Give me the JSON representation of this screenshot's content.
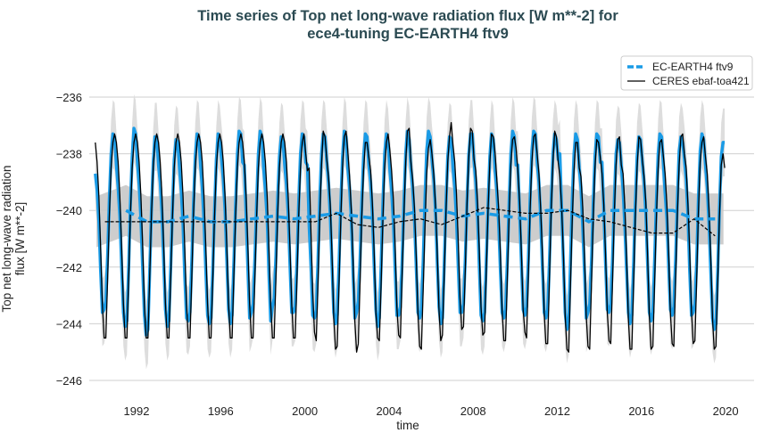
{
  "chart_data": {
    "type": "line",
    "title": [
      "Time series of Top net long-wave radiation flux [W m**-2] for",
      "ece4-tuning EC-EARTH4 ftv9"
    ],
    "xlabel": "time",
    "ylabel": [
      "Top net long-wave radiation",
      "flux [W m**-2]"
    ],
    "xlim": [
      1990,
      2020.5
    ],
    "ylim": [
      -246.5,
      -234.9
    ],
    "x_ticks": [
      "1992",
      "1996",
      "2000",
      "2004",
      "2008",
      "2012",
      "2016",
      "2020"
    ],
    "y_ticks": [
      "−236",
      "−238",
      "−240",
      "−242",
      "−244",
      "−246"
    ],
    "grid": "horizontal",
    "legend_position": "top-right",
    "colors": {
      "model": "#1a9be6",
      "obs": "#000000",
      "spread": "#dddddd",
      "mean_band": "#c8c8c8",
      "title": "#2b4a52"
    },
    "monthly_start_year": 1990,
    "series": [
      {
        "name": "EC-EARTH4 ftv9",
        "style": "dashed-mean-thick-solid-monthly",
        "spread_monthly": 1.2,
        "spread_mean": 0.9,
        "monthly": [
          [
            -238.7,
            -239.3,
            -240.4,
            -242.1,
            -243.6,
            -243.5,
            -243.2,
            -241.6,
            -239.6,
            -238.0,
            -237.3,
            -237.4
          ],
          [
            -238.4,
            -239.2,
            -240.2,
            -242.0,
            -243.6,
            -244.1,
            -243.9,
            -242.0,
            -239.8,
            -238.1,
            -237.1,
            -237.3
          ],
          [
            -238.3,
            -239.1,
            -240.3,
            -242.1,
            -243.7,
            -244.4,
            -244.2,
            -242.2,
            -240.0,
            -238.3,
            -237.4,
            -237.4
          ],
          [
            -238.4,
            -239.0,
            -240.1,
            -241.9,
            -243.5,
            -244.1,
            -243.9,
            -242.0,
            -239.9,
            -238.2,
            -237.5,
            -237.6
          ],
          [
            -238.5,
            -239.3,
            -240.5,
            -242.3,
            -243.8,
            -243.9,
            -243.6,
            -241.8,
            -239.8,
            -238.1,
            -237.3,
            -237.4
          ],
          [
            -238.4,
            -239.2,
            -240.4,
            -242.1,
            -243.7,
            -244.0,
            -243.8,
            -242.0,
            -240.0,
            -238.2,
            -237.3,
            -237.5
          ],
          [
            -238.2,
            -238.9,
            -240.0,
            -241.8,
            -243.5,
            -244.0,
            -243.7,
            -241.9,
            -239.8,
            -238.0,
            -237.2,
            -237.3
          ],
          [
            -238.3,
            -238.4,
            -240.2,
            -242.1,
            -243.8,
            -243.6,
            -243.3,
            -241.7,
            -239.7,
            -238.0,
            -237.2,
            -237.4
          ],
          [
            -238.5,
            -239.3,
            -240.3,
            -242.2,
            -243.9,
            -243.4,
            -243.1,
            -241.6,
            -239.6,
            -238.1,
            -237.4,
            -237.5
          ],
          [
            -238.4,
            -239.1,
            -240.1,
            -241.9,
            -243.6,
            -243.6,
            -243.4,
            -241.8,
            -239.7,
            -238.0,
            -237.3,
            -237.4
          ],
          [
            -238.3,
            -238.4,
            -240.6,
            -242.0,
            -243.7,
            -243.8,
            -243.5,
            -241.8,
            -239.6,
            -238.0,
            -237.3,
            -237.4
          ],
          [
            -238.3,
            -239.0,
            -240.2,
            -242.0,
            -243.6,
            -244.0,
            -243.7,
            -241.9,
            -239.8,
            -238.1,
            -237.2,
            -237.4
          ],
          [
            -238.5,
            -239.2,
            -240.3,
            -242.2,
            -243.8,
            -243.6,
            -243.2,
            -241.7,
            -239.7,
            -238.1,
            -237.3,
            -237.4
          ],
          [
            -238.4,
            -239.0,
            -240.1,
            -241.9,
            -243.5,
            -244.1,
            -243.8,
            -241.9,
            -239.8,
            -238.0,
            -237.3,
            -237.6
          ],
          [
            -238.6,
            -239.3,
            -240.4,
            -242.1,
            -243.7,
            -243.7,
            -243.4,
            -241.8,
            -239.7,
            -238.0,
            -237.2,
            -237.5
          ],
          [
            -238.5,
            -239.2,
            -240.3,
            -242.0,
            -243.6,
            -243.8,
            -243.5,
            -241.8,
            -239.6,
            -237.9,
            -237.2,
            -237.4
          ],
          [
            -238.2,
            -238.9,
            -240.0,
            -241.8,
            -243.4,
            -244.0,
            -243.8,
            -241.9,
            -239.8,
            -238.1,
            -237.4,
            -237.5
          ],
          [
            -238.5,
            -239.2,
            -240.3,
            -242.0,
            -243.6,
            -243.6,
            -243.3,
            -241.7,
            -239.7,
            -238.0,
            -237.3,
            -237.3
          ],
          [
            -238.3,
            -239.0,
            -240.2,
            -242.0,
            -243.7,
            -243.9,
            -243.6,
            -241.8,
            -239.8,
            -238.1,
            -237.3,
            -237.5
          ],
          [
            -238.6,
            -239.3,
            -240.4,
            -242.1,
            -243.6,
            -243.8,
            -243.5,
            -241.8,
            -239.7,
            -238.0,
            -237.2,
            -237.4
          ],
          [
            -238.4,
            -238.4,
            -240.1,
            -241.8,
            -243.5,
            -243.7,
            -243.4,
            -241.7,
            -239.6,
            -237.9,
            -237.2,
            -237.3
          ],
          [
            -238.3,
            -239.0,
            -240.2,
            -242.0,
            -243.6,
            -243.8,
            -243.5,
            -241.8,
            -239.7,
            -238.0,
            -237.3,
            -237.5
          ],
          [
            -238.2,
            -238.0,
            -240.0,
            -241.9,
            -243.6,
            -244.2,
            -243.9,
            -241.9,
            -239.7,
            -238.0,
            -237.3,
            -237.5
          ],
          [
            -238.5,
            -239.2,
            -240.6,
            -242.2,
            -243.8,
            -243.6,
            -243.3,
            -241.8,
            -239.7,
            -238.1,
            -237.3,
            -237.4
          ],
          [
            -238.3,
            -238.3,
            -240.0,
            -241.8,
            -243.5,
            -243.6,
            -243.3,
            -241.7,
            -239.7,
            -238.0,
            -237.5,
            -237.6
          ],
          [
            -238.4,
            -239.3,
            -240.5,
            -242.1,
            -243.6,
            -244.0,
            -243.7,
            -241.9,
            -239.8,
            -238.1,
            -237.4,
            -237.5
          ],
          [
            -238.3,
            -239.0,
            -240.1,
            -241.9,
            -243.6,
            -243.9,
            -243.6,
            -241.8,
            -239.7,
            -238.0,
            -237.3,
            -237.4
          ],
          [
            -238.4,
            -239.4,
            -240.3,
            -242.0,
            -243.5,
            -243.7,
            -243.4,
            -241.7,
            -239.6,
            -237.9,
            -237.4,
            -237.6
          ],
          [
            -238.2,
            -238.9,
            -240.2,
            -242.1,
            -243.7,
            -243.6,
            -243.3,
            -241.8,
            -239.6,
            -237.9,
            -237.3,
            -237.5
          ],
          [
            -238.4,
            -239.2,
            -240.4,
            -242.1,
            -243.8,
            -244.2,
            -244.0,
            -242.1,
            -239.9,
            -238.1,
            -237.6,
            -237.6
          ]
        ],
        "running_mean": {
          "years": [
            1991,
            1992,
            1993,
            1994,
            1995,
            1996,
            1997,
            1998,
            1999,
            2000,
            2001,
            2002,
            2003,
            2004,
            2005,
            2006,
            2007,
            2008,
            2009,
            2010,
            2011,
            2012,
            2013,
            2014,
            2015,
            2016,
            2017,
            2018,
            2019
          ],
          "values": [
            -240.0,
            -240.4,
            -240.4,
            -240.2,
            -240.4,
            -240.4,
            -240.3,
            -240.2,
            -240.3,
            -240.2,
            -240.1,
            -240.2,
            -240.3,
            -240.2,
            -240.0,
            -240.0,
            -240.2,
            -240.1,
            -240.2,
            -240.3,
            -240.0,
            -240.0,
            -240.4,
            -240.0,
            -240.0,
            -240.0,
            -240.0,
            -240.3,
            -240.3
          ]
        }
      },
      {
        "name": "CERES ebaf-toa421",
        "style": "thin-solid-monthly-dashed-mean",
        "monthly": [
          [
            -237.6,
            -238.3,
            -239.5,
            -241.3,
            -243.3,
            -244.5,
            -244.5,
            -242.4,
            -240.2,
            -238.5,
            -237.6,
            -237.3
          ],
          [
            -237.6,
            -238.3,
            -239.5,
            -241.3,
            -243.3,
            -244.5,
            -244.5,
            -242.4,
            -240.2,
            -238.5,
            -237.6,
            -237.3
          ],
          [
            -237.6,
            -238.3,
            -239.5,
            -241.3,
            -243.3,
            -244.5,
            -244.5,
            -242.4,
            -240.2,
            -238.5,
            -237.6,
            -237.3
          ],
          [
            -237.6,
            -238.3,
            -239.5,
            -241.3,
            -243.3,
            -244.5,
            -244.5,
            -242.4,
            -240.2,
            -238.5,
            -237.6,
            -237.3
          ],
          [
            -237.6,
            -238.3,
            -239.5,
            -241.3,
            -243.3,
            -244.5,
            -244.5,
            -242.4,
            -240.2,
            -238.5,
            -237.6,
            -237.3
          ],
          [
            -237.6,
            -238.3,
            -239.5,
            -241.3,
            -243.3,
            -244.5,
            -244.5,
            -242.4,
            -240.2,
            -238.5,
            -237.6,
            -237.3
          ],
          [
            -237.6,
            -238.3,
            -239.5,
            -241.3,
            -243.3,
            -244.5,
            -244.5,
            -242.4,
            -240.2,
            -238.5,
            -237.6,
            -237.3
          ],
          [
            -237.6,
            -238.3,
            -239.5,
            -241.3,
            -243.3,
            -244.5,
            -244.5,
            -242.4,
            -240.2,
            -238.5,
            -237.6,
            -237.3
          ],
          [
            -237.6,
            -238.3,
            -239.5,
            -241.3,
            -243.3,
            -244.5,
            -244.5,
            -242.4,
            -240.2,
            -238.5,
            -237.6,
            -237.3
          ],
          [
            -237.6,
            -238.3,
            -239.5,
            -241.3,
            -243.3,
            -244.5,
            -244.5,
            -242.4,
            -240.2,
            -238.5,
            -237.6,
            -237.3
          ],
          [
            -238.0,
            -238.6,
            -238.5,
            -240.8,
            -242.9,
            -244.3,
            -244.6,
            -242.6,
            -240.3,
            -238.4,
            -237.2,
            -237.4
          ],
          [
            -238.2,
            -238.8,
            -239.8,
            -241.6,
            -243.8,
            -244.9,
            -244.8,
            -242.6,
            -240.3,
            -238.5,
            -237.4,
            -237.2
          ],
          [
            -237.9,
            -238.8,
            -240.0,
            -241.7,
            -243.9,
            -245.0,
            -244.7,
            -242.5,
            -240.2,
            -238.6,
            -237.6,
            -237.6
          ],
          [
            -238.1,
            -238.6,
            -239.7,
            -241.4,
            -243.6,
            -244.5,
            -244.6,
            -242.6,
            -240.4,
            -238.5,
            -237.6,
            -237.3
          ],
          [
            -237.9,
            -238.6,
            -239.6,
            -241.3,
            -243.4,
            -244.4,
            -244.5,
            -242.3,
            -240.2,
            -238.3,
            -237.2,
            -237.1
          ],
          [
            -238.3,
            -238.9,
            -239.9,
            -241.6,
            -243.6,
            -244.8,
            -244.9,
            -242.8,
            -240.6,
            -238.7,
            -237.8,
            -237.5
          ],
          [
            -238.0,
            -238.7,
            -239.8,
            -241.4,
            -243.5,
            -244.6,
            -244.4,
            -242.3,
            -240.1,
            -238.3,
            -237.4,
            -236.9
          ],
          [
            -237.7,
            -238.3,
            -239.4,
            -241.1,
            -243.1,
            -244.2,
            -244.1,
            -242.1,
            -239.8,
            -238.1,
            -237.1,
            -237.2
          ],
          [
            -238.2,
            -238.6,
            -239.7,
            -241.4,
            -243.4,
            -244.4,
            -244.3,
            -242.2,
            -240.0,
            -238.3,
            -237.3,
            -237.4
          ],
          [
            -238.0,
            -238.9,
            -239.9,
            -241.5,
            -243.5,
            -244.6,
            -244.6,
            -242.4,
            -240.2,
            -238.4,
            -237.5,
            -237.4
          ],
          [
            -237.8,
            -238.6,
            -239.7,
            -241.4,
            -243.5,
            -244.3,
            -244.5,
            -242.3,
            -240.0,
            -238.3,
            -237.4,
            -237.3
          ],
          [
            -238.0,
            -238.7,
            -239.9,
            -241.5,
            -243.6,
            -244.7,
            -244.7,
            -242.4,
            -240.1,
            -238.3,
            -237.2,
            -237.4
          ],
          [
            -238.3,
            -238.8,
            -239.9,
            -241.6,
            -243.7,
            -244.9,
            -245.0,
            -242.7,
            -240.4,
            -238.6,
            -237.6,
            -237.6
          ],
          [
            -238.5,
            -238.8,
            -239.9,
            -241.6,
            -243.7,
            -244.8,
            -244.9,
            -242.6,
            -240.3,
            -238.5,
            -237.5,
            -237.6
          ],
          [
            -238.1,
            -238.7,
            -239.8,
            -241.5,
            -243.6,
            -244.6,
            -244.7,
            -242.5,
            -240.2,
            -238.4,
            -237.5,
            -237.4
          ],
          [
            -238.4,
            -238.7,
            -239.8,
            -241.6,
            -243.8,
            -244.9,
            -244.9,
            -242.6,
            -240.3,
            -238.5,
            -237.4,
            -237.5
          ],
          [
            -238.2,
            -238.8,
            -239.7,
            -241.6,
            -243.7,
            -244.9,
            -244.8,
            -242.6,
            -240.3,
            -238.5,
            -237.6,
            -237.5
          ],
          [
            -238.1,
            -238.7,
            -239.8,
            -241.5,
            -243.6,
            -244.7,
            -244.8,
            -242.4,
            -240.1,
            -238.4,
            -237.4,
            -237.3
          ],
          [
            -238.0,
            -238.5,
            -239.8,
            -241.4,
            -243.5,
            -244.7,
            -244.6,
            -242.4,
            -240.1,
            -238.3,
            -237.6,
            -237.4
          ],
          [
            -238.1,
            -238.7,
            -239.9,
            -241.6,
            -243.8,
            -244.9,
            -244.8,
            -242.5,
            -240.2,
            -238.4,
            -238.0,
            -238.5
          ]
        ],
        "running_mean": {
          "years": [
            1990,
            1991,
            1992,
            1993,
            1994,
            1995,
            1996,
            1997,
            1998,
            1999,
            2000,
            2001,
            2002,
            2003,
            2004,
            2005,
            2006,
            2007,
            2008,
            2009,
            2010,
            2011,
            2012,
            2013,
            2014,
            2015,
            2016,
            2017,
            2018,
            2019
          ],
          "values": [
            -240.4,
            -240.4,
            -240.4,
            -240.4,
            -240.4,
            -240.4,
            -240.4,
            -240.4,
            -240.4,
            -240.4,
            -240.4,
            -240.1,
            -240.5,
            -240.6,
            -240.4,
            -240.3,
            -240.5,
            -240.2,
            -239.9,
            -240.0,
            -240.1,
            -240.1,
            -240.0,
            -240.3,
            -240.4,
            -240.6,
            -240.8,
            -240.8,
            -240.3,
            -240.9
          ]
        }
      }
    ]
  }
}
